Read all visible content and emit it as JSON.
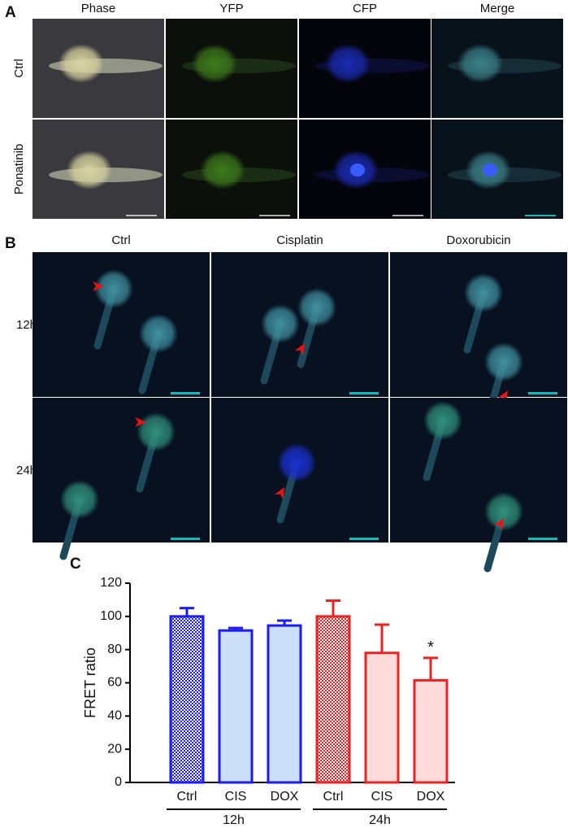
{
  "panel_a": {
    "label": "A",
    "columns": [
      "Phase",
      "YFP",
      "CFP",
      "Merge"
    ],
    "rows": [
      "Ctrl",
      "Ponatinib"
    ]
  },
  "panel_b": {
    "label": "B",
    "columns": [
      "Ctrl",
      "Cisplatin",
      "Doxorubicin"
    ],
    "rows": [
      "12h",
      "24h"
    ]
  },
  "panel_c": {
    "label": "C"
  },
  "chart_data": {
    "type": "bar",
    "ylabel": "FRET ratio",
    "categories": [
      "Ctrl",
      "CIS",
      "DOX",
      "Ctrl",
      "CIS",
      "DOX"
    ],
    "groups": [
      "12h",
      "24h"
    ],
    "series": [
      {
        "values": [
          100,
          91.5,
          94.5,
          100,
          78,
          61.5
        ],
        "errors": [
          5,
          1.5,
          3,
          9.5,
          17,
          13.5
        ]
      }
    ],
    "bar_colors": [
      "#1a1aff",
      "#1a1aff",
      "#1a1aff",
      "#ee2222",
      "#ee2222",
      "#ee2222"
    ],
    "bar_fills": [
      "#1a1aff",
      "#cddff6",
      "#cddff6",
      "#ee2222",
      "#ffdcdc",
      "#ffdcdc"
    ],
    "checkered": [
      true,
      false,
      false,
      true,
      false,
      false
    ],
    "annotation": "*",
    "ylim": [
      0,
      120
    ],
    "yticks": [
      0,
      20,
      40,
      60,
      80,
      100,
      120
    ]
  }
}
